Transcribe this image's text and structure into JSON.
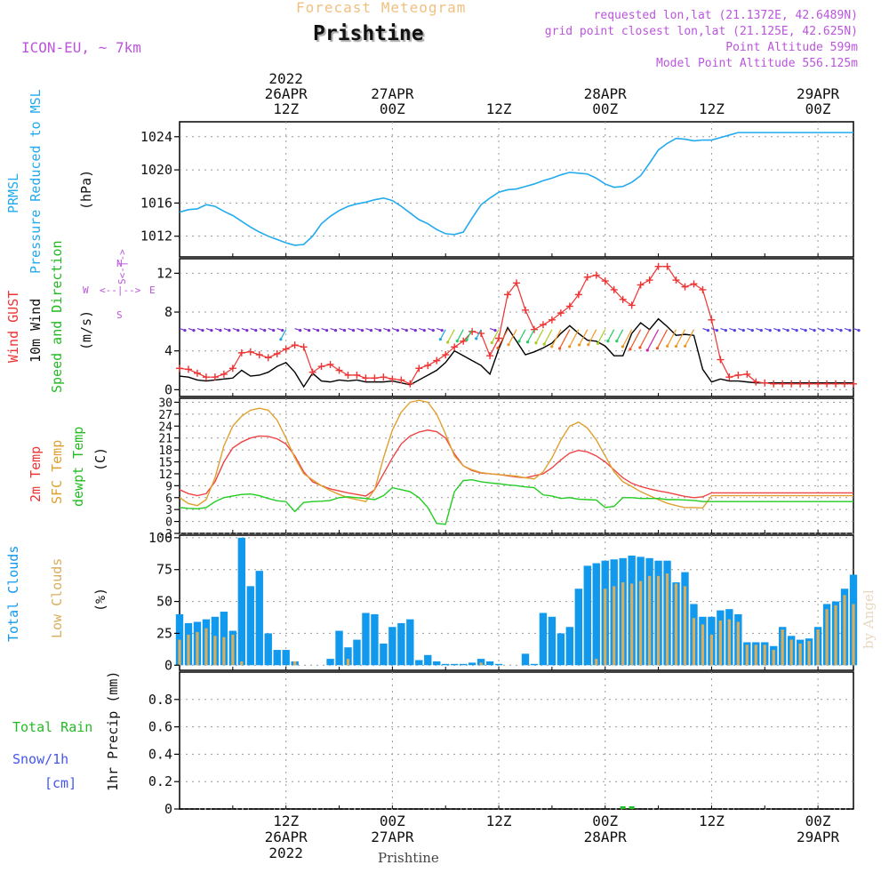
{
  "header": {
    "product": "Forecast Meteogram",
    "location": "Prishtine",
    "model": "ICON-EU, ~ 7km",
    "requested": "requested lon,lat (21.1372E, 42.6489N)",
    "grid_point": "grid point closest lon,lat (21.125E, 42.625N)",
    "point_altitude": "Point Altitude 599m",
    "model_altitude": "Model Point Altitude 556.125m",
    "watermark": "by Angel",
    "footer_location": "Prishtine"
  },
  "time_axis": {
    "top_labels": [
      {
        "hour": 12,
        "lines": [
          "2022",
          "26APR",
          "12Z"
        ]
      },
      {
        "hour": 24,
        "lines": [
          "27APR",
          "00Z"
        ]
      },
      {
        "hour": 36,
        "lines": [
          "12Z"
        ]
      },
      {
        "hour": 48,
        "lines": [
          "28APR",
          "00Z"
        ]
      },
      {
        "hour": 60,
        "lines": [
          "12Z"
        ]
      },
      {
        "hour": 72,
        "lines": [
          "29APR",
          "00Z"
        ]
      }
    ],
    "bottom_labels": [
      {
        "hour": 12,
        "lines": [
          "12Z",
          "26APR",
          "2022"
        ]
      },
      {
        "hour": 24,
        "lines": [
          "00Z",
          "27APR"
        ]
      },
      {
        "hour": 36,
        "lines": [
          "12Z"
        ]
      },
      {
        "hour": 48,
        "lines": [
          "00Z",
          "28APR"
        ]
      },
      {
        "hour": 60,
        "lines": [
          "12Z"
        ]
      },
      {
        "hour": 72,
        "lines": [
          "00Z",
          "29APR"
        ]
      }
    ]
  },
  "panel_labels": {
    "pressure": {
      "name": "PRMSL",
      "desc": "Pressure Reduced to MSL",
      "unit": "(hPa)"
    },
    "wind": {
      "gust": "Wind GUST",
      "wind10": "10m Wind",
      "dir": "Speed and Direction",
      "unit": "(m/s)",
      "compass": {
        "n": "N",
        "s": "S",
        "w": "W",
        "e": "E"
      }
    },
    "temp": {
      "t2m": "2m Temp",
      "sfc": "SFC Temp",
      "dewpt": "dewpt Temp",
      "unit": "(C)"
    },
    "clouds": {
      "total": "Total Clouds",
      "low": "Low Clouds",
      "unit": "(%)"
    },
    "precip": {
      "total_rain": "Total  Rain",
      "snow": "Snow/1h",
      "snow_unit": "[cm]",
      "unit": "1hr Precip (mm)"
    }
  },
  "colors": {
    "pressure": "#22aaee",
    "gust": "#ee3333",
    "wind": "#000000",
    "t2m": "#ee4444",
    "sfc": "#e0a030",
    "dewpt": "#22cc22",
    "total_clouds": "#1199ee",
    "low_clouds": "#d9ad5c",
    "rain": "#22bb22",
    "purple": "#bb55dd",
    "title_orange": "#f0c080",
    "snow_blue": "#4455ee"
  },
  "chart_data": [
    {
      "type": "line",
      "name": "pressure",
      "ylabel": "PRMSL Pressure Reduced to MSL (hPa)",
      "yticks": [
        1012,
        1016,
        1020,
        1024
      ],
      "ylim": [
        1009.5,
        1025.8
      ],
      "grid": true,
      "x": [
        0,
        1,
        2,
        3,
        4,
        5,
        6,
        7,
        8,
        9,
        10,
        11,
        12,
        13,
        14,
        15,
        16,
        17,
        18,
        19,
        20,
        21,
        22,
        23,
        24,
        25,
        26,
        27,
        28,
        29,
        30,
        31,
        32,
        33,
        34,
        35,
        36,
        37,
        38,
        39,
        40,
        41,
        42,
        43,
        44,
        45,
        46,
        47,
        48,
        49,
        50,
        51,
        52,
        53,
        54,
        55,
        56,
        57,
        58,
        59,
        60,
        61,
        62,
        63,
        64,
        65,
        66,
        67,
        68,
        69,
        70,
        71,
        72,
        73,
        74,
        75,
        76
      ],
      "series": [
        {
          "values": [
            1014.9,
            1015.2,
            1015.3,
            1015.8,
            1015.6,
            1015.0,
            1014.5,
            1013.8,
            1013.1,
            1012.5,
            1012.0,
            1011.6,
            1011.2,
            1010.9,
            1011.0,
            1012.0,
            1013.5,
            1014.4,
            1015.1,
            1015.6,
            1015.9,
            1016.1,
            1016.4,
            1016.6,
            1016.3,
            1015.6,
            1014.8,
            1014.0,
            1013.5,
            1012.8,
            1012.3,
            1012.2,
            1012.5,
            1014.2,
            1015.8,
            1016.6,
            1017.3,
            1017.6,
            1017.7,
            1018.0,
            1018.3,
            1018.7,
            1019.0,
            1019.4,
            1019.7,
            1019.6,
            1019.5,
            1019.0,
            1018.3,
            1017.9,
            1018.0,
            1018.5,
            1019.3,
            1020.8,
            1022.4,
            1023.2,
            1023.8,
            1023.7,
            1023.5,
            1023.6,
            1023.6,
            1023.9,
            1024.2,
            1024.5,
            1024.5,
            1024.5,
            1024.5,
            1024.5,
            1024.5,
            1024.5,
            1024.5,
            1024.5,
            1024.5,
            1024.5,
            1024.5,
            1024.5,
            1024.5
          ]
        }
      ]
    },
    {
      "type": "line",
      "name": "wind",
      "ylabel": "Wind GUST / 10m Wind Speed and Direction (m/s)",
      "yticks": [
        0,
        4,
        8,
        12
      ],
      "ylim": [
        -0.7,
        13.5
      ],
      "grid": true,
      "x": [
        0,
        1,
        2,
        3,
        4,
        5,
        6,
        7,
        8,
        9,
        10,
        11,
        12,
        13,
        14,
        15,
        16,
        17,
        18,
        19,
        20,
        21,
        22,
        23,
        24,
        25,
        26,
        27,
        28,
        29,
        30,
        31,
        32,
        33,
        34,
        35,
        36,
        37,
        38,
        39,
        40,
        41,
        42,
        43,
        44,
        45,
        46,
        47,
        48,
        49,
        50,
        51,
        52,
        53,
        54,
        55,
        56,
        57,
        58,
        59,
        60,
        61,
        62,
        63,
        64,
        65,
        66,
        67,
        68,
        69,
        70,
        71,
        72,
        73,
        74,
        75,
        76
      ],
      "series": [
        {
          "name": "Wind GUST",
          "values": [
            2.2,
            2.1,
            1.7,
            1.3,
            1.3,
            1.6,
            2.2,
            3.8,
            3.9,
            3.6,
            3.3,
            3.7,
            4.2,
            4.6,
            4.4,
            1.8,
            2.4,
            2.6,
            2.0,
            1.5,
            1.5,
            1.2,
            1.2,
            1.3,
            1.1,
            1.0,
            0.6,
            2.2,
            2.5,
            3.0,
            3.6,
            4.4,
            5.0,
            6.0,
            5.8,
            3.5,
            5.3,
            9.8,
            11.0,
            8.2,
            6.2,
            6.7,
            7.2,
            7.9,
            8.6,
            9.8,
            11.6,
            11.8,
            11.2,
            10.3,
            9.3,
            8.7,
            10.8,
            11.3,
            12.7,
            12.7,
            11.3,
            10.6,
            10.9,
            10.3,
            7.2,
            3.1,
            1.3,
            1.5,
            1.6,
            0.8,
            0.7,
            0.6,
            0.6,
            0.6,
            0.6,
            0.6,
            0.6,
            0.6,
            0.6,
            0.6,
            0.6
          ]
        },
        {
          "name": "10m Wind",
          "values": [
            1.4,
            1.3,
            1.0,
            0.9,
            1.0,
            1.1,
            1.2,
            2.0,
            1.4,
            1.5,
            1.8,
            2.4,
            2.8,
            1.8,
            0.3,
            1.7,
            0.9,
            0.8,
            1.0,
            0.9,
            1.0,
            0.8,
            0.8,
            0.8,
            0.9,
            0.7,
            0.5,
            1.0,
            1.5,
            2.0,
            2.8,
            4.0,
            3.5,
            3.0,
            2.5,
            1.6,
            4.2,
            6.4,
            5.0,
            3.6,
            3.9,
            4.3,
            4.8,
            5.8,
            6.6,
            5.8,
            5.1,
            5.0,
            4.5,
            3.5,
            3.5,
            5.8,
            6.9,
            6.2,
            7.3,
            6.5,
            5.6,
            5.7,
            5.6,
            2.1,
            0.8,
            1.1,
            0.9,
            0.9,
            0.8,
            0.7,
            0.7,
            0.7,
            0.7,
            0.7,
            0.7,
            0.7,
            0.7,
            0.7,
            0.7,
            0.7,
            0.7
          ]
        }
      ]
    },
    {
      "type": "line",
      "name": "temperature",
      "ylabel": "2m Temp / SFC Temp / dewpt Temp (C)",
      "yticks": [
        -3,
        0,
        3,
        6,
        9,
        12,
        15,
        18,
        21,
        24,
        27,
        30
      ],
      "ylim": [
        -3,
        31
      ],
      "grid": true,
      "x": [
        0,
        1,
        2,
        3,
        4,
        5,
        6,
        7,
        8,
        9,
        10,
        11,
        12,
        13,
        14,
        15,
        16,
        17,
        18,
        19,
        20,
        21,
        22,
        23,
        24,
        25,
        26,
        27,
        28,
        29,
        30,
        31,
        32,
        33,
        34,
        35,
        36,
        37,
        38,
        39,
        40,
        41,
        42,
        43,
        44,
        45,
        46,
        47,
        48,
        49,
        50,
        51,
        52,
        53,
        54,
        55,
        56,
        57,
        58,
        59,
        60,
        61,
        62,
        63,
        64,
        65,
        66,
        67,
        68,
        69,
        70,
        71,
        72,
        73,
        74,
        75,
        76
      ],
      "series": [
        {
          "name": "2m Temp",
          "values": [
            8.0,
            7.0,
            6.5,
            7.0,
            10.0,
            15.0,
            18.5,
            20.0,
            21.0,
            21.5,
            21.4,
            20.8,
            19.5,
            16.5,
            12.5,
            10.0,
            9.0,
            8.2,
            7.7,
            7.2,
            6.8,
            6.4,
            8.0,
            12.0,
            16.0,
            19.5,
            21.5,
            22.5,
            23.0,
            22.6,
            21.0,
            17.0,
            14.0,
            12.8,
            12.2,
            12.0,
            11.8,
            11.5,
            11.2,
            11.0,
            11.5,
            12.0,
            13.5,
            15.5,
            17.2,
            17.9,
            17.5,
            16.5,
            15.0,
            13.0,
            11.0,
            9.6,
            8.8,
            8.2,
            7.7,
            7.3,
            6.8,
            6.3,
            6.0,
            6.2,
            7.2,
            7.2,
            7.2,
            7.2,
            7.2,
            7.2,
            7.2,
            7.2,
            7.2,
            7.2,
            7.2,
            7.2,
            7.2,
            7.2,
            7.2,
            7.2,
            7.2
          ]
        },
        {
          "name": "SFC Temp",
          "values": [
            6.0,
            4.5,
            4.0,
            5.5,
            11.0,
            19.0,
            24.0,
            26.5,
            28.0,
            28.5,
            28.0,
            25.5,
            21.0,
            16.0,
            12.0,
            10.5,
            9.0,
            7.8,
            6.8,
            6.0,
            5.5,
            5.0,
            8.0,
            16.0,
            23.0,
            27.5,
            30.0,
            30.5,
            30.0,
            27.0,
            22.0,
            16.5,
            14.0,
            13.0,
            12.3,
            12.0,
            11.8,
            11.6,
            11.4,
            11.0,
            10.7,
            12.5,
            16.0,
            20.5,
            24.0,
            25.0,
            23.5,
            20.5,
            16.5,
            12.5,
            10.0,
            8.8,
            7.5,
            6.5,
            5.5,
            4.6,
            4.0,
            3.5,
            3.5,
            3.4,
            6.5,
            6.5,
            6.5,
            6.5,
            6.5,
            6.5,
            6.5,
            6.5,
            6.5,
            6.5,
            6.5,
            6.5,
            6.5,
            6.5,
            6.5,
            6.5,
            6.5
          ]
        },
        {
          "name": "dewpt Temp",
          "values": [
            3.5,
            3.3,
            3.2,
            3.5,
            5.0,
            6.0,
            6.4,
            6.8,
            6.9,
            6.5,
            5.8,
            5.2,
            5.0,
            2.5,
            4.8,
            5.0,
            5.1,
            5.3,
            6.0,
            6.2,
            6.0,
            5.8,
            5.5,
            6.5,
            8.5,
            8.0,
            7.5,
            6.0,
            3.5,
            -0.5,
            -0.7,
            7.5,
            10.3,
            10.5,
            10.0,
            9.7,
            9.5,
            9.2,
            9.0,
            8.7,
            8.5,
            6.7,
            6.4,
            5.8,
            6.0,
            5.6,
            5.5,
            5.4,
            3.5,
            3.8,
            6.0,
            6.0,
            5.8,
            5.8,
            5.8,
            5.5,
            5.5,
            5.4,
            5.3,
            5.0,
            5.0,
            5.0,
            5.0,
            5.0,
            5.0,
            5.0,
            5.0,
            5.0,
            5.0,
            5.0,
            5.0,
            5.0,
            5.0,
            5.0,
            5.0,
            5.0,
            5.0
          ]
        }
      ]
    },
    {
      "type": "bar",
      "name": "clouds",
      "ylabel": "Total Clouds / Low Clouds (%)",
      "yticks": [
        0,
        25,
        50,
        75,
        100
      ],
      "ylim": [
        -4,
        102
      ],
      "grid": true,
      "x": [
        0,
        1,
        2,
        3,
        4,
        5,
        6,
        7,
        8,
        9,
        10,
        11,
        12,
        13,
        14,
        15,
        16,
        17,
        18,
        19,
        20,
        21,
        22,
        23,
        24,
        25,
        26,
        27,
        28,
        29,
        30,
        31,
        32,
        33,
        34,
        35,
        36,
        37,
        38,
        39,
        40,
        41,
        42,
        43,
        44,
        45,
        46,
        47,
        48,
        49,
        50,
        51,
        52,
        53,
        54,
        55,
        56,
        57,
        58,
        59,
        60,
        61,
        62,
        63,
        64,
        65,
        66,
        67,
        68,
        69,
        70,
        71,
        72,
        73,
        74,
        75,
        76
      ],
      "series": [
        {
          "name": "Total Clouds",
          "values": [
            40,
            33,
            34,
            36,
            38,
            42,
            27,
            100,
            62,
            74,
            25,
            12,
            12,
            3,
            0,
            0,
            0,
            5,
            27,
            14,
            20,
            41,
            40,
            17,
            30,
            33,
            36,
            4,
            8,
            3,
            1,
            1,
            1,
            2,
            5,
            3,
            1,
            0,
            0,
            9,
            1,
            41,
            38,
            25,
            30,
            60,
            78,
            80,
            82,
            83,
            84,
            86,
            85,
            84,
            82,
            82,
            65,
            73,
            48,
            38,
            38,
            43,
            44,
            40,
            18,
            18,
            18,
            15,
            30,
            23,
            20,
            21,
            30,
            48,
            50,
            60,
            71
          ]
        },
        {
          "name": "Low Clouds",
          "values": [
            20,
            24,
            26,
            29,
            23,
            22,
            24,
            3,
            0,
            0,
            0,
            0,
            0,
            3,
            0,
            0,
            0,
            0,
            0,
            5,
            0,
            0,
            0,
            0,
            0,
            0,
            0,
            0,
            0,
            0,
            0,
            0,
            0,
            0,
            2,
            0,
            0,
            0,
            0,
            0,
            0,
            0,
            0,
            0,
            0,
            0,
            0,
            5,
            60,
            62,
            65,
            64,
            66,
            70,
            70,
            72,
            64,
            62,
            37,
            32,
            24,
            35,
            36,
            34,
            16,
            16,
            16,
            12,
            28,
            20,
            17,
            19,
            28,
            44,
            47,
            55,
            48
          ]
        }
      ]
    },
    {
      "type": "bar",
      "name": "precipitation",
      "ylabel": "1hr Precip (mm)",
      "yticks": [
        0,
        0.2,
        0.4,
        0.6,
        0.8
      ],
      "ylim": [
        0,
        1.0
      ],
      "grid": true,
      "x": [
        50,
        51
      ],
      "series": [
        {
          "name": "Total Rain",
          "values": [
            0.01,
            0.01
          ]
        }
      ]
    }
  ]
}
